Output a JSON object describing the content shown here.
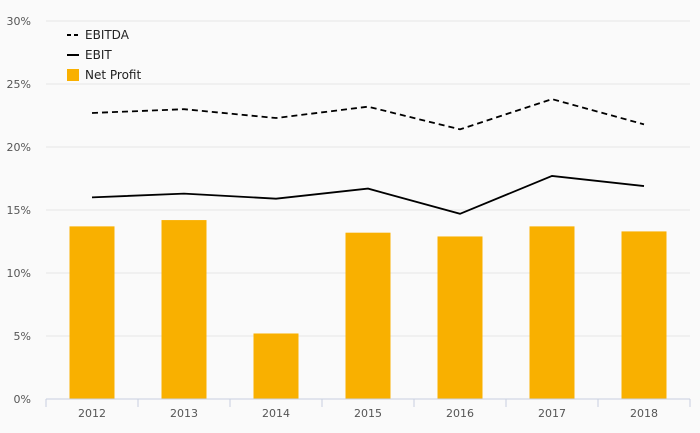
{
  "chart_data": {
    "type": "bar",
    "title": "",
    "xlabel": "",
    "ylabel": "",
    "categories": [
      "2012",
      "2013",
      "2014",
      "2015",
      "2016",
      "2017",
      "2018"
    ],
    "ylim": [
      0,
      30
    ],
    "yticks": [
      0,
      5,
      10,
      15,
      20,
      25,
      30
    ],
    "ytick_labels": [
      "0%",
      "5%",
      "10%",
      "15%",
      "20%",
      "25%",
      "30%"
    ],
    "grid": true,
    "legend_position": "top-left",
    "series": [
      {
        "name": "EBITDA",
        "type": "line",
        "style": "dashed",
        "color": "#000000",
        "values": [
          22.7,
          23.0,
          22.3,
          23.2,
          21.4,
          23.8,
          21.8
        ]
      },
      {
        "name": "EBIT",
        "type": "line",
        "style": "solid",
        "color": "#000000",
        "values": [
          16.0,
          16.3,
          15.9,
          16.7,
          14.7,
          17.7,
          16.9
        ]
      },
      {
        "name": "Net Profit",
        "type": "bar",
        "color": "#f9b000",
        "values": [
          13.7,
          14.2,
          5.2,
          13.2,
          12.9,
          13.7,
          13.3
        ]
      }
    ]
  }
}
